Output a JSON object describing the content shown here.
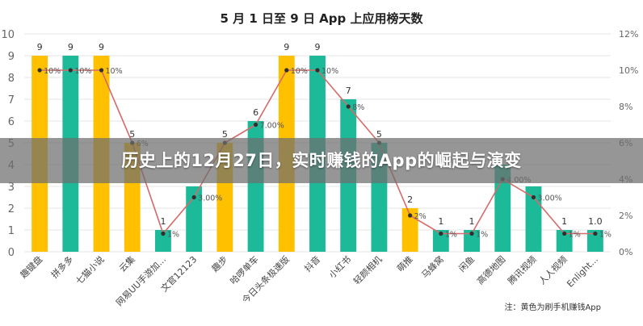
{
  "overlay_title": "历史上的12月27日，实时赚钱的App的崛起与演变",
  "footnote": "注：黄色为刷手机赚钱App",
  "colors": {
    "yellow": "#FFC000",
    "teal": "#1DBA9A",
    "line": "#D46A6A",
    "marker": "#2f2f2f",
    "grid": "#e6e6e6",
    "axis_text": "#666666"
  },
  "chart_data": {
    "type": "bar",
    "title": "5 月 1 日至 9 日 App 上应用榜天数",
    "categories": [
      "趣键盘",
      "拼多多",
      "七猫小说",
      "云集",
      "网易UU手游加...",
      "文官12123",
      "趣步",
      "哈啰单车",
      "今日头条极速版",
      "抖音",
      "小红书",
      "轻颜相机",
      "萌推",
      "马蜂窝",
      "闲鱼",
      "高德地图",
      "腾讯视频",
      "人人视频",
      "Enlight..."
    ],
    "values": [
      9,
      9,
      9,
      5,
      1,
      3,
      5,
      6,
      9,
      9,
      7,
      5,
      2,
      1,
      1,
      4,
      3,
      1,
      1
    ],
    "value_labels": [
      "9",
      "9",
      "9",
      "5",
      "1",
      "",
      "5",
      "6",
      "9",
      "9",
      "7",
      "5",
      "2",
      "1",
      "1",
      "",
      "",
      "1",
      "1.0"
    ],
    "bar_colors": [
      "yellow",
      "teal",
      "yellow",
      "yellow",
      "teal",
      "teal",
      "yellow",
      "teal",
      "yellow",
      "teal",
      "teal",
      "teal",
      "yellow",
      "teal",
      "teal",
      "teal",
      "teal",
      "teal",
      "teal"
    ],
    "line_series": {
      "values": [
        10,
        10,
        10,
        6,
        1,
        3,
        6,
        7,
        10,
        10,
        8,
        6,
        2,
        1,
        1,
        4,
        3,
        1,
        1
      ],
      "labels": [
        "10%",
        "10%",
        "10%",
        "6%",
        "1%",
        "3.00%",
        "",
        "7.00%",
        "10%",
        "10%",
        "8%",
        "",
        "2%",
        "1%",
        "1%",
        "4.00%",
        "3.00%",
        "1%",
        "1%"
      ]
    },
    "ylim": [
      0,
      10
    ],
    "yticks": [
      0,
      1,
      2,
      3,
      4,
      5,
      6,
      7,
      8,
      9,
      10
    ],
    "y2lim": [
      0,
      12
    ],
    "y2ticks": [
      "0%",
      "2%",
      "4%",
      "6%",
      "8%",
      "10%",
      "12%"
    ],
    "grid": true
  }
}
